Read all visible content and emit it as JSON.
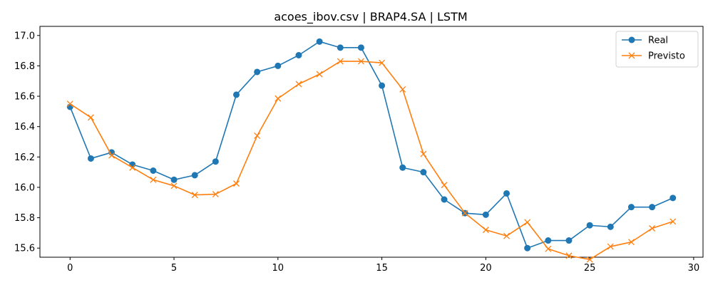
{
  "chart_data": {
    "type": "line",
    "title": "acoes_ibov.csv | BRAP4.SA | LSTM",
    "xlabel": "",
    "ylabel": "",
    "x": [
      0,
      1,
      2,
      3,
      4,
      5,
      6,
      7,
      8,
      9,
      10,
      11,
      12,
      13,
      14,
      15,
      16,
      17,
      18,
      19,
      20,
      21,
      22,
      23,
      24,
      25,
      26,
      27,
      28,
      29
    ],
    "xlim": [
      -1.45,
      30.45
    ],
    "ylim": [
      15.54,
      17.06
    ],
    "xticks": [
      0,
      5,
      10,
      15,
      20,
      25,
      30
    ],
    "yticks": [
      15.6,
      15.8,
      16.0,
      16.2,
      16.4,
      16.6,
      16.8,
      17.0
    ],
    "xtick_labels": [
      "0",
      "5",
      "10",
      "15",
      "20",
      "25",
      "30"
    ],
    "ytick_labels": [
      "15.6",
      "15.8",
      "16.0",
      "16.2",
      "16.4",
      "16.6",
      "16.8",
      "17.0"
    ],
    "grid": false,
    "legend_position": "top-right",
    "series": [
      {
        "name": "Real",
        "color": "#1f77b4",
        "marker": "circle",
        "values": [
          16.53,
          16.19,
          16.23,
          16.15,
          16.11,
          16.05,
          16.08,
          16.17,
          16.61,
          16.76,
          16.8,
          16.87,
          16.96,
          16.92,
          16.92,
          16.67,
          16.13,
          16.1,
          15.92,
          15.83,
          15.82,
          15.96,
          15.6,
          15.65,
          15.65,
          15.75,
          15.74,
          15.87,
          15.87,
          15.93
        ]
      },
      {
        "name": "Previsto",
        "color": "#ff7f0e",
        "marker": "x",
        "values": [
          16.55,
          16.46,
          16.21,
          16.13,
          16.05,
          16.01,
          15.95,
          15.955,
          16.025,
          16.34,
          16.585,
          16.68,
          16.745,
          16.83,
          16.83,
          16.82,
          16.645,
          16.22,
          16.015,
          15.83,
          15.72,
          15.68,
          15.77,
          15.595,
          15.55,
          15.525,
          15.61,
          15.64,
          15.73,
          15.775
        ]
      }
    ]
  }
}
